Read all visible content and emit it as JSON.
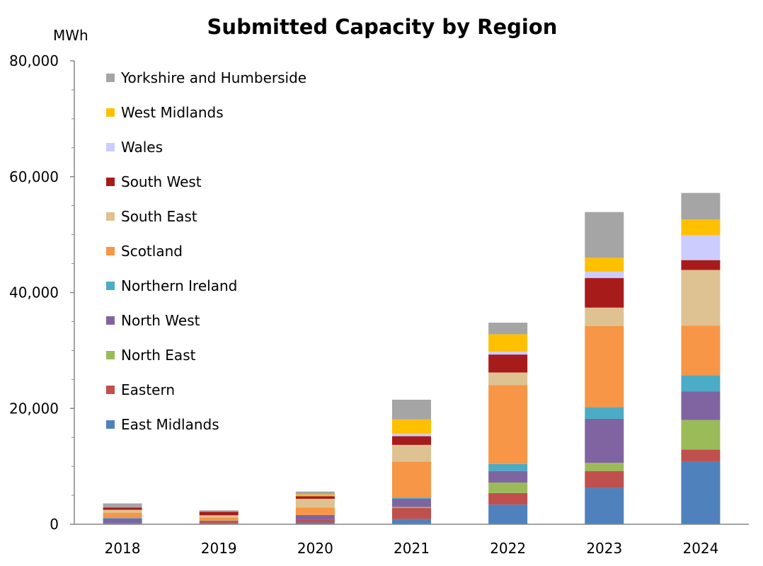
{
  "chart_data": {
    "type": "bar",
    "stacked": true,
    "title": "Submitted Capacity by Region",
    "ylabel": "MWh",
    "xlabel": "",
    "ylim": [
      0,
      80000
    ],
    "yticks": [
      0,
      20000,
      40000,
      60000,
      80000
    ],
    "ytick_labels": [
      "0",
      "20,000",
      "40,000",
      "60,000",
      "80,000"
    ],
    "grid": false,
    "legend_position": "top-left",
    "categories": [
      "2018",
      "2019",
      "2020",
      "2021",
      "2022",
      "2023",
      "2024"
    ],
    "series": [
      {
        "name": "East Midlands",
        "color": "#4F81BD",
        "values": [
          200,
          200,
          300,
          900,
          3400,
          6300,
          10800
        ]
      },
      {
        "name": "Eastern",
        "color": "#C0504D",
        "values": [
          0,
          400,
          500,
          1900,
          2000,
          2900,
          2100
        ]
      },
      {
        "name": "North East",
        "color": "#9BBB59",
        "values": [
          0,
          0,
          0,
          200,
          1800,
          1400,
          5100
        ]
      },
      {
        "name": "North West",
        "color": "#8064A2",
        "values": [
          800,
          0,
          800,
          1400,
          2000,
          7600,
          4900
        ]
      },
      {
        "name": "Northern Ireland",
        "color": "#4BACC6",
        "values": [
          100,
          50,
          0,
          200,
          1200,
          2000,
          2800
        ]
      },
      {
        "name": "Scotland",
        "color": "#F79646",
        "values": [
          900,
          500,
          1300,
          6200,
          13600,
          14000,
          8600
        ]
      },
      {
        "name": "South East",
        "color": "#DFC291",
        "values": [
          500,
          400,
          1500,
          2900,
          2200,
          3200,
          9600
        ]
      },
      {
        "name": "South West",
        "color": "#A81B1B",
        "values": [
          400,
          600,
          450,
          1500,
          3100,
          5100,
          1700
        ]
      },
      {
        "name": "Wales",
        "color": "#CCCCFF",
        "values": [
          0,
          0,
          0,
          400,
          500,
          1100,
          4300
        ]
      },
      {
        "name": "West Midlands",
        "color": "#FFC000",
        "values": [
          0,
          0,
          300,
          2500,
          3000,
          2400,
          2700
        ]
      },
      {
        "name": "Yorkshire and Humberside",
        "color": "#A5A5A5",
        "values": [
          700,
          250,
          500,
          3400,
          2000,
          7900,
          4600
        ]
      }
    ]
  }
}
